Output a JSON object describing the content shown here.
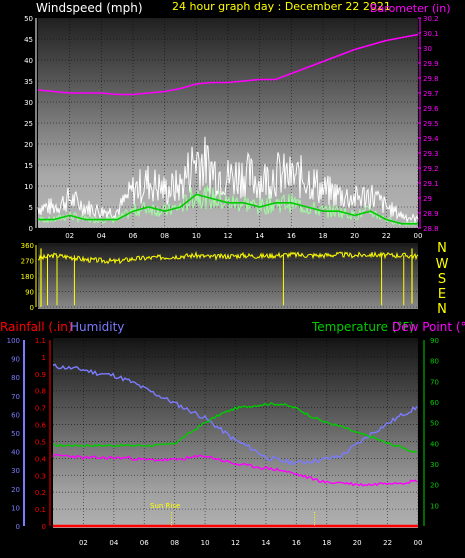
{
  "header": {
    "wind_label": "Windspeed (mph)",
    "title": "24 hour graph day : December 22 2021",
    "baro_label": "Barometer (in)"
  },
  "lower_header": {
    "rain_label": "Rainfall (.in)",
    "hum_label": "Humidity",
    "temp_label": "Temperature (°F)",
    "dew_label": "Dew Point (°F)"
  },
  "sun_label": "Sun Rise",
  "compass": [
    "N",
    "W",
    "S",
    "E",
    "N"
  ],
  "colors": {
    "wind_gust": "#ffffff",
    "wind_avg": "#00cc00",
    "barometer": "#ff00ff",
    "direction": "#ffff00",
    "humidity": "#7b7bff",
    "temperature": "#00cc00",
    "dew_point": "#ff00ff",
    "rain": "#ff0000"
  },
  "chart_data": [
    {
      "type": "line",
      "name": "wind_barometer",
      "title": "24 hour graph day : December 22 2021",
      "ylabel": "Windspeed (mph)",
      "y2label": "Barometer (in)",
      "xticks": [
        "02",
        "04",
        "06",
        "08",
        "10",
        "12",
        "14",
        "16",
        "18",
        "20",
        "22",
        "00"
      ],
      "ylim": [
        0,
        50
      ],
      "yticks": [
        0,
        5,
        10,
        15,
        20,
        25,
        30,
        35,
        40,
        45,
        50
      ],
      "y2lim": [
        28.8,
        30.2
      ],
      "y2ticks": [
        "28.8",
        "28.9",
        "29",
        "29.1",
        "29.2",
        "29.3",
        "29.4",
        "29.5",
        "29.6",
        "29.7",
        "29.8",
        "29.9",
        "30",
        "30.1",
        "30.2"
      ],
      "x_hours": [
        0,
        1,
        2,
        3,
        4,
        5,
        6,
        7,
        8,
        9,
        10,
        11,
        12,
        13,
        14,
        15,
        16,
        17,
        18,
        19,
        20,
        21,
        22,
        23,
        24
      ],
      "series": [
        {
          "key": "gust",
          "values": [
            5,
            5,
            7,
            5,
            4,
            4,
            9,
            11,
            9,
            10,
            17,
            14,
            12,
            13,
            11,
            13,
            12,
            12,
            9,
            8,
            7,
            8,
            5,
            3,
            2
          ]
        },
        {
          "key": "average",
          "values": [
            2,
            2,
            3,
            2,
            2,
            2,
            4,
            5,
            4,
            5,
            8,
            7,
            6,
            6,
            5,
            6,
            6,
            5,
            4,
            4,
            3,
            4,
            2,
            1,
            1
          ]
        },
        {
          "key": "barometer",
          "values": [
            29.72,
            29.71,
            29.7,
            29.7,
            29.7,
            29.69,
            29.69,
            29.7,
            29.71,
            29.73,
            29.76,
            29.77,
            29.77,
            29.78,
            29.79,
            29.79,
            29.83,
            29.87,
            29.91,
            29.95,
            29.99,
            30.02,
            30.05,
            30.07,
            30.09
          ]
        }
      ]
    },
    {
      "type": "scatter",
      "name": "wind_direction",
      "ylim": [
        0,
        360
      ],
      "yticks": [
        0,
        90,
        180,
        270,
        360
      ],
      "x_hours": [
        0,
        1,
        2,
        3,
        4,
        5,
        6,
        7,
        8,
        9,
        10,
        11,
        12,
        13,
        14,
        15,
        16,
        17,
        18,
        19,
        20,
        21,
        22,
        23,
        24
      ],
      "series": [
        {
          "key": "direction",
          "values": [
            280,
            300,
            290,
            275,
            270,
            265,
            280,
            285,
            290,
            295,
            300,
            290,
            295,
            300,
            295,
            300,
            305,
            300,
            300,
            305,
            300,
            305,
            300,
            300,
            295
          ]
        }
      ]
    },
    {
      "type": "line",
      "name": "rain_humidity_temperature",
      "xticks": [
        "02",
        "04",
        "06",
        "08",
        "10",
        "12",
        "14",
        "16",
        "18",
        "20",
        "22",
        "00"
      ],
      "left_ylim": [
        0,
        1.1
      ],
      "left_yticks": [
        "0",
        "0.1",
        "0.2",
        "0.3",
        "0.4",
        "0.5",
        "0.6",
        "0.7",
        "0.8",
        "0.9",
        "1",
        "1.1"
      ],
      "humidity_ylim": [
        0,
        100
      ],
      "humidity_yticks": [
        0,
        10,
        20,
        30,
        40,
        50,
        60,
        70,
        80,
        90,
        100
      ],
      "right_ylim": [
        0,
        90
      ],
      "right_yticks": [
        10,
        20,
        30,
        40,
        50,
        60,
        70,
        80,
        90
      ],
      "x_hours": [
        0,
        1,
        2,
        3,
        4,
        5,
        6,
        7,
        8,
        9,
        10,
        11,
        12,
        13,
        14,
        15,
        16,
        17,
        18,
        19,
        20,
        21,
        22,
        23,
        24
      ],
      "series": [
        {
          "key": "humidity",
          "values": [
            86,
            85,
            84,
            82,
            81,
            78,
            74,
            70,
            66,
            62,
            58,
            52,
            46,
            42,
            37,
            35,
            34,
            35,
            36,
            38,
            44,
            50,
            55,
            60,
            64
          ]
        },
        {
          "key": "temperature",
          "values": [
            39,
            39,
            39,
            39,
            39,
            39,
            39,
            39,
            40,
            45,
            50,
            54,
            57,
            58,
            59,
            59,
            57,
            53,
            50,
            48,
            45,
            43,
            40,
            38,
            35
          ]
        },
        {
          "key": "dew_point",
          "values": [
            34,
            34,
            33,
            33,
            33,
            33,
            32,
            32,
            32,
            33,
            34,
            32,
            30,
            29,
            28,
            27,
            25,
            23,
            21,
            21,
            20,
            20,
            21,
            21,
            22
          ]
        },
        {
          "key": "rain",
          "values": [
            0,
            0,
            0,
            0,
            0,
            0,
            0,
            0,
            0,
            0,
            0,
            0,
            0,
            0,
            0,
            0,
            0,
            0,
            0,
            0,
            0,
            0,
            0,
            0,
            0
          ]
        }
      ]
    }
  ]
}
